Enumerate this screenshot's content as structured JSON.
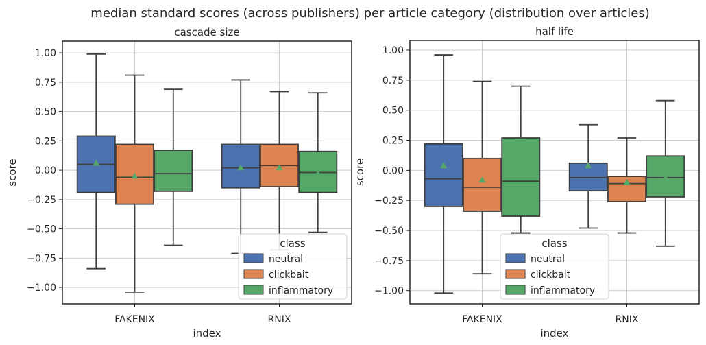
{
  "figure": {
    "title": "median standard scores (across publishers) per article category (distribution over articles)"
  },
  "colors": {
    "neutral": "#4c72b0",
    "clickbait": "#dd8452",
    "inflammatory": "#55a868",
    "mean_marker": "#55a868",
    "box_edge": "#3f3f3f",
    "grid": "#cccccc",
    "frame": "#262626"
  },
  "chart_data": [
    {
      "type": "box",
      "title": "cascade size",
      "xlabel": "index",
      "ylabel": "score",
      "ylim": [
        -1.14,
        1.1
      ],
      "yticks": [
        -1.0,
        -0.75,
        -0.5,
        -0.25,
        0.0,
        0.25,
        0.5,
        0.75,
        1.0
      ],
      "ytick_labels": [
        "−1.00",
        "−0.75",
        "−0.50",
        "−0.25",
        "0.00",
        "0.25",
        "0.50",
        "0.75",
        "1.00"
      ],
      "categories": [
        "FAKENIX",
        "RNIX"
      ],
      "grid": true,
      "legend": {
        "title": "class",
        "placement": "lower-right"
      },
      "series": [
        {
          "name": "neutral",
          "stats": [
            {
              "whislo": -0.84,
              "q1": -0.19,
              "med": 0.05,
              "q3": 0.29,
              "whishi": 0.99,
              "mean": 0.06
            },
            {
              "whislo": -0.71,
              "q1": -0.15,
              "med": 0.02,
              "q3": 0.22,
              "whishi": 0.77,
              "mean": 0.02
            }
          ]
        },
        {
          "name": "clickbait",
          "stats": [
            {
              "whislo": -1.04,
              "q1": -0.29,
              "med": -0.06,
              "q3": 0.22,
              "whishi": 0.81,
              "mean": -0.05
            },
            {
              "whislo": -0.68,
              "q1": -0.14,
              "med": 0.04,
              "q3": 0.22,
              "whishi": 0.67,
              "mean": 0.02
            }
          ]
        },
        {
          "name": "inflammatory",
          "stats": [
            {
              "whislo": -0.64,
              "q1": -0.18,
              "med": -0.03,
              "q3": 0.17,
              "whishi": 0.69,
              "mean": 0.01
            },
            {
              "whislo": -0.53,
              "q1": -0.19,
              "med": -0.02,
              "q3": 0.16,
              "whishi": 0.66,
              "mean": -0.03
            }
          ]
        }
      ]
    },
    {
      "type": "box",
      "title": "half life",
      "xlabel": "index",
      "ylabel": "score",
      "ylim": [
        -1.11,
        1.08
      ],
      "yticks": [
        -1.0,
        -0.75,
        -0.5,
        -0.25,
        0.0,
        0.25,
        0.5,
        0.75,
        1.0
      ],
      "ytick_labels": [
        "−1.00",
        "−0.75",
        "−0.50",
        "−0.25",
        "0.00",
        "0.25",
        "0.50",
        "0.75",
        "1.00"
      ],
      "categories": [
        "FAKENIX",
        "RNIX"
      ],
      "grid": true,
      "legend": {
        "title": "class",
        "placement": "lower-center"
      },
      "series": [
        {
          "name": "neutral",
          "stats": [
            {
              "whislo": -1.02,
              "q1": -0.3,
              "med": -0.07,
              "q3": 0.22,
              "whishi": 0.96,
              "mean": 0.04
            },
            {
              "whislo": -0.48,
              "q1": -0.17,
              "med": -0.06,
              "q3": 0.06,
              "whishi": 0.38,
              "mean": 0.04
            }
          ]
        },
        {
          "name": "clickbait",
          "stats": [
            {
              "whislo": -0.86,
              "q1": -0.34,
              "med": -0.14,
              "q3": 0.1,
              "whishi": 0.74,
              "mean": -0.08
            },
            {
              "whislo": -0.52,
              "q1": -0.26,
              "med": -0.11,
              "q3": -0.05,
              "whishi": 0.27,
              "mean": -0.1
            }
          ]
        },
        {
          "name": "inflammatory",
          "stats": [
            {
              "whislo": -0.52,
              "q1": -0.38,
              "med": -0.09,
              "q3": 0.27,
              "whishi": 0.7,
              "mean": 0.0
            },
            {
              "whislo": -0.63,
              "q1": -0.22,
              "med": -0.06,
              "q3": 0.12,
              "whishi": 0.58,
              "mean": -0.06
            }
          ]
        }
      ]
    }
  ]
}
